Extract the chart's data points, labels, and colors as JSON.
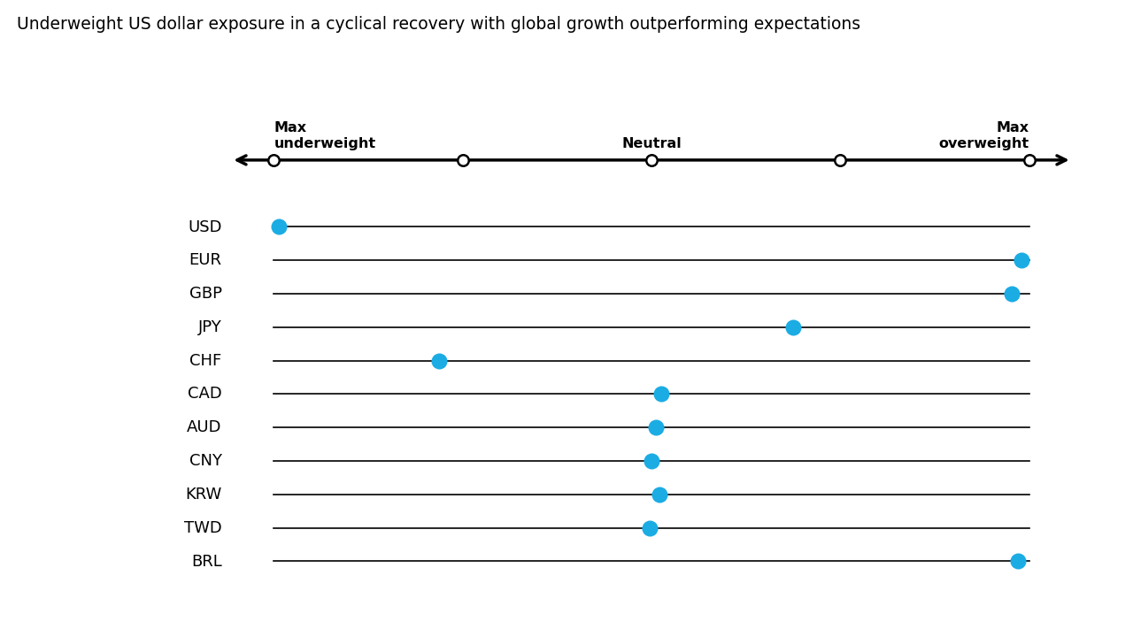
{
  "title": "Underweight US dollar exposure in a cyclical recovery with global growth outperforming expectations",
  "title_fontsize": 13.5,
  "currencies": [
    "USD",
    "EUR",
    "GBP",
    "JPY",
    "CHF",
    "CAD",
    "AUD",
    "CNY",
    "KRW",
    "TWD",
    "BRL"
  ],
  "scale_min": 0,
  "scale_max": 8,
  "scale_ticks": [
    0,
    2,
    4,
    6,
    8
  ],
  "dot_positions": {
    "USD": 0.05,
    "EUR": 7.92,
    "GBP": 7.82,
    "JPY": 5.5,
    "CHF": 1.75,
    "CAD": 4.1,
    "AUD": 4.05,
    "CNY": 4.0,
    "KRW": 4.08,
    "TWD": 3.98,
    "BRL": 7.88
  },
  "dot_color": "#1BACE4",
  "line_color": "#000000",
  "background_color": "#ffffff",
  "open_circle_facecolor": "#ffffff",
  "open_circle_edgecolor": "#000000",
  "label_color": "#000000",
  "currency_fontsize": 13,
  "header_fontsize": 11.5
}
